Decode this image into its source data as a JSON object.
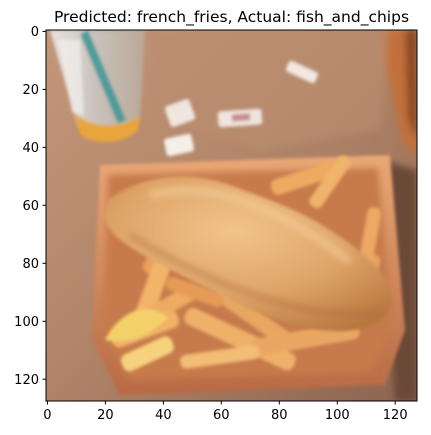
{
  "figure": {
    "title": "Predicted: french_fries, Actual: fish_and_chips",
    "image_subject": "fish and chips in a paper tray on a wooden table",
    "axes": {
      "x_ticks": [
        "0",
        "20",
        "40",
        "60",
        "80",
        "100",
        "120"
      ],
      "y_ticks": [
        "0",
        "20",
        "40",
        "60",
        "80",
        "100",
        "120"
      ],
      "x_range": [
        0,
        128
      ],
      "y_range": [
        0,
        128
      ]
    },
    "colors": {
      "table": "#b4876a",
      "tray": "#e0986a",
      "fish": "#e3a868",
      "fries": "#f0b066",
      "cup": "#dedcd8",
      "straw": "#4f9c9a",
      "juice": "#e9a53a"
    }
  }
}
